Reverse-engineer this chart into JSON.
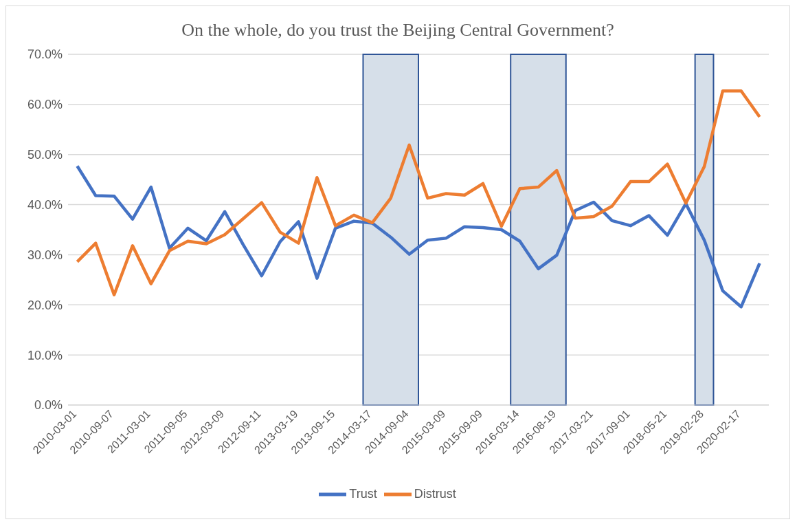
{
  "chart_data": {
    "type": "line",
    "title": "On the whole, do you trust the Beijing Central Government?",
    "categories": [
      "2010-03-01",
      null,
      "2010-09-07",
      null,
      "2011-03-01",
      null,
      "2011-09-05",
      null,
      "2012-03-09",
      null,
      "2012-09-11",
      null,
      "2013-03-19",
      null,
      "2013-09-15",
      null,
      "2014-03-17",
      null,
      "2014-09-04",
      null,
      "2015-03-09",
      null,
      "2015-09-09",
      null,
      "2016-03-14",
      null,
      "2016-08-19",
      null,
      "2017-03-21",
      null,
      "2017-09-01",
      null,
      "2018-05-21",
      null,
      "2019-02-28",
      null,
      "2020-02-17",
      null
    ],
    "series": [
      {
        "name": "Trust",
        "color": "#4472c4",
        "values": [
          47.7,
          41.8,
          41.7,
          37.1,
          43.5,
          31.3,
          35.3,
          32.8,
          38.6,
          32.0,
          25.8,
          32.6,
          36.6,
          25.3,
          35.3,
          36.7,
          36.3,
          33.5,
          30.1,
          32.9,
          33.3,
          35.6,
          35.4,
          35.0,
          32.7,
          27.2,
          29.9,
          38.8,
          40.5,
          36.8,
          35.8,
          37.8,
          33.9,
          40.2,
          32.9,
          22.8,
          19.6,
          28.3
        ]
      },
      {
        "name": "Distrust",
        "color": "#ed7d31",
        "values": [
          28.6,
          32.3,
          22.0,
          31.8,
          24.2,
          30.8,
          32.7,
          32.2,
          34.0,
          37.2,
          40.4,
          34.5,
          32.3,
          45.4,
          35.8,
          37.9,
          36.4,
          41.3,
          51.9,
          41.3,
          42.2,
          41.9,
          44.2,
          35.7,
          43.2,
          43.5,
          46.8,
          37.3,
          37.6,
          39.7,
          44.6,
          44.6,
          48.1,
          40.3,
          47.6,
          62.7,
          62.7,
          57.5
        ]
      }
    ],
    "ylim": [
      0,
      70
    ],
    "yticks": [
      {
        "value": 0,
        "label": "0.0%"
      },
      {
        "value": 10,
        "label": "10.0%"
      },
      {
        "value": 20,
        "label": "20.0%"
      },
      {
        "value": 30,
        "label": "30.0%"
      },
      {
        "value": 40,
        "label": "40.0%"
      },
      {
        "value": 50,
        "label": "50.0%"
      },
      {
        "value": 60,
        "label": "60.0%"
      },
      {
        "value": 70,
        "label": "70.0%"
      }
    ],
    "bands": [
      {
        "axis": "x",
        "from": "2014-03-17",
        "to": "2014-09-04",
        "color": "#d6dfe9"
      },
      {
        "axis": "x",
        "from": "2016-03-14",
        "to": "2016-08-19",
        "color": "#d6dfe9"
      },
      {
        "axis": "x",
        "from": "2019-02-28",
        "to": "2019-02-28",
        "color": "#d6dfe9"
      }
    ],
    "grid": "y",
    "legend": "bottom",
    "marker": "none",
    "line_style": "solid"
  }
}
